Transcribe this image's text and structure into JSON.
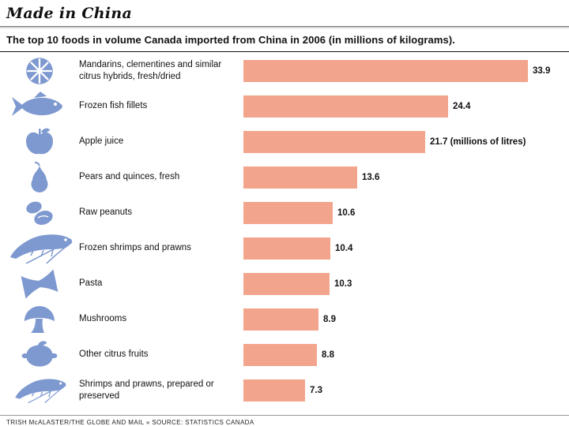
{
  "header": {
    "title": "Made in China",
    "subtitle": "The top 10 foods in volume Canada imported from China in 2006 (in millions of kilograms)."
  },
  "footer": {
    "credit": "TRISH McALASTER/THE GLOBE AND MAIL » SOURCE: STATISTICS CANADA"
  },
  "colors": {
    "bar": "#f2a58c",
    "icon": "#7e99d0"
  },
  "chart_data": {
    "type": "bar",
    "orientation": "horizontal",
    "title": "Made in China",
    "subtitle": "The top 10 foods in volume Canada imported from China in 2006 (in millions of kilograms).",
    "unit": "millions of kilograms",
    "categories": [
      "Mandarins, clementines and similar citrus hybrids, fresh/dried",
      "Frozen fish fillets",
      "Apple juice",
      "Pears and quinces, fresh",
      "Raw peanuts",
      "Frozen shrimps and prawns",
      "Pasta",
      "Mushrooms",
      "Other citrus fruits",
      "Shrimps and prawns, prepared or preserved"
    ],
    "values": [
      33.9,
      24.4,
      21.7,
      13.6,
      10.6,
      10.4,
      10.3,
      8.9,
      8.8,
      7.3
    ],
    "value_labels": [
      "33.9",
      "24.4",
      "21.7 (millions of litres)",
      "13.6",
      "10.6",
      "10.4",
      "10.3",
      "8.9",
      "8.8",
      "7.3"
    ],
    "icons": [
      "citrus-slice-icon",
      "fish-icon",
      "apple-icon",
      "pear-icon",
      "peanuts-icon",
      "shrimp-icon",
      "pasta-bowtie-icon",
      "mushroom-icon",
      "lemon-icon",
      "shrimp-icon"
    ],
    "xlim": [
      0,
      34
    ],
    "grid": false,
    "legend": false
  }
}
